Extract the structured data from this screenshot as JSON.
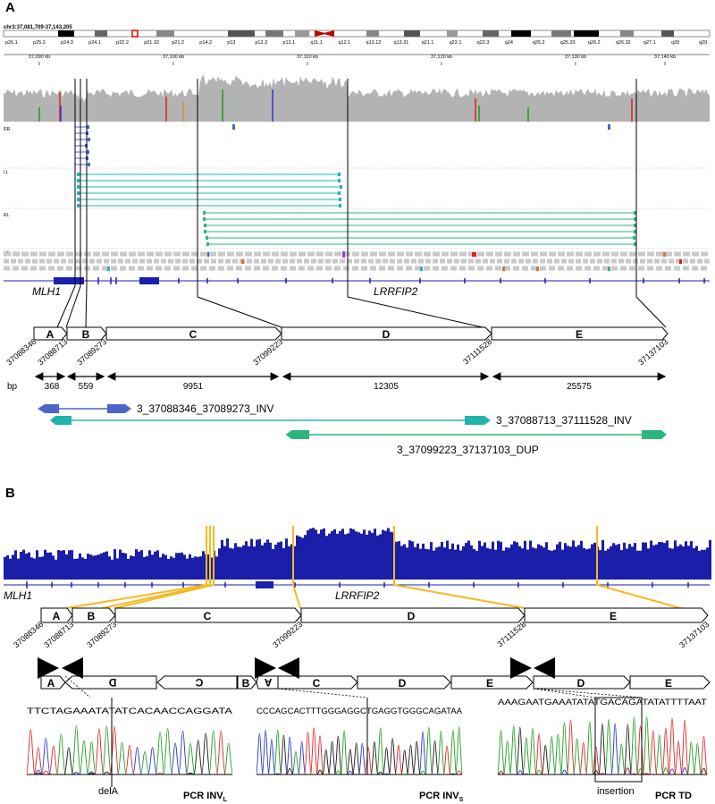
{
  "panels": {
    "a": {
      "label": "A",
      "locus": "chr3:37,081,709-37,143,205",
      "cytobands": [
        "p26.1",
        "p25.2",
        "p24.3",
        "p24.1",
        "p22.2",
        "p21.32",
        "p21.2",
        "p14.2",
        "p13",
        "p12.3",
        "p12.1",
        "q11.1",
        "q12.1",
        "q13.12",
        "q13.31",
        "q21.1",
        "q22.1",
        "q22.3",
        "q24",
        "q25.2",
        "q25.33",
        "q26.2",
        "q26.32",
        "q27.1",
        "q28",
        "q29"
      ],
      "ruler_ticks": [
        "37,090 kb",
        "37,100 kb",
        "37,110 kb",
        "37,120 kb",
        "37,130 kb",
        "37,140 kb"
      ],
      "tracks": [
        "RR",
        "LL",
        "RL",
        "LR"
      ],
      "genes": [
        "MLH1",
        "LRRFIP2"
      ],
      "segments": [
        "A",
        "B",
        "C",
        "D",
        "E"
      ],
      "breakpoints": [
        "37088346",
        "37088713",
        "37089273",
        "37099223",
        "37111528",
        "37137103"
      ],
      "bp_label": "bp",
      "lengths": [
        "368",
        "559",
        "9951",
        "12305",
        "25575"
      ],
      "events": [
        "3_37088346_37089273_INV",
        "3_37088713_37111528_INV",
        "3_37099223_37137103_DUP"
      ]
    },
    "b": {
      "label": "B",
      "genes": [
        "MLH1",
        "LRRFIP2"
      ],
      "segments": [
        "A",
        "B",
        "C",
        "D",
        "E"
      ],
      "breakpoints": [
        "37088346",
        "37088713",
        "37089273",
        "37099223",
        "37111528",
        "37137103"
      ],
      "rearranged_1": [
        "A",
        "D",
        "C",
        "B"
      ],
      "rearranged_2": [
        "A",
        "C",
        "D",
        "E"
      ],
      "rearranged_3": [
        "D",
        "E"
      ],
      "seq1": "TTCTAGAAATATATCACAACCAGGATA",
      "seq2": "CCCAGCACTTTGGGAGGCTGAGGTGGGCAGATAA",
      "seq3": "AAAGAATGAAATATATGACAGATATATTTTAAT",
      "delA": "delA",
      "insertion": "insertion",
      "pcr1_main": "PCR INV",
      "pcr1_sub": "L",
      "pcr2_main": "PCR INV",
      "pcr2_sub": "S",
      "pcr3": "PCR TD"
    }
  },
  "colors": {
    "blue": "#1a21b0",
    "track_blue": "#4a66c8",
    "teal": "#1fb5ad",
    "green": "#2bb57c",
    "gold": "#f5b920",
    "coverage_gray": "#b3b3b3"
  }
}
